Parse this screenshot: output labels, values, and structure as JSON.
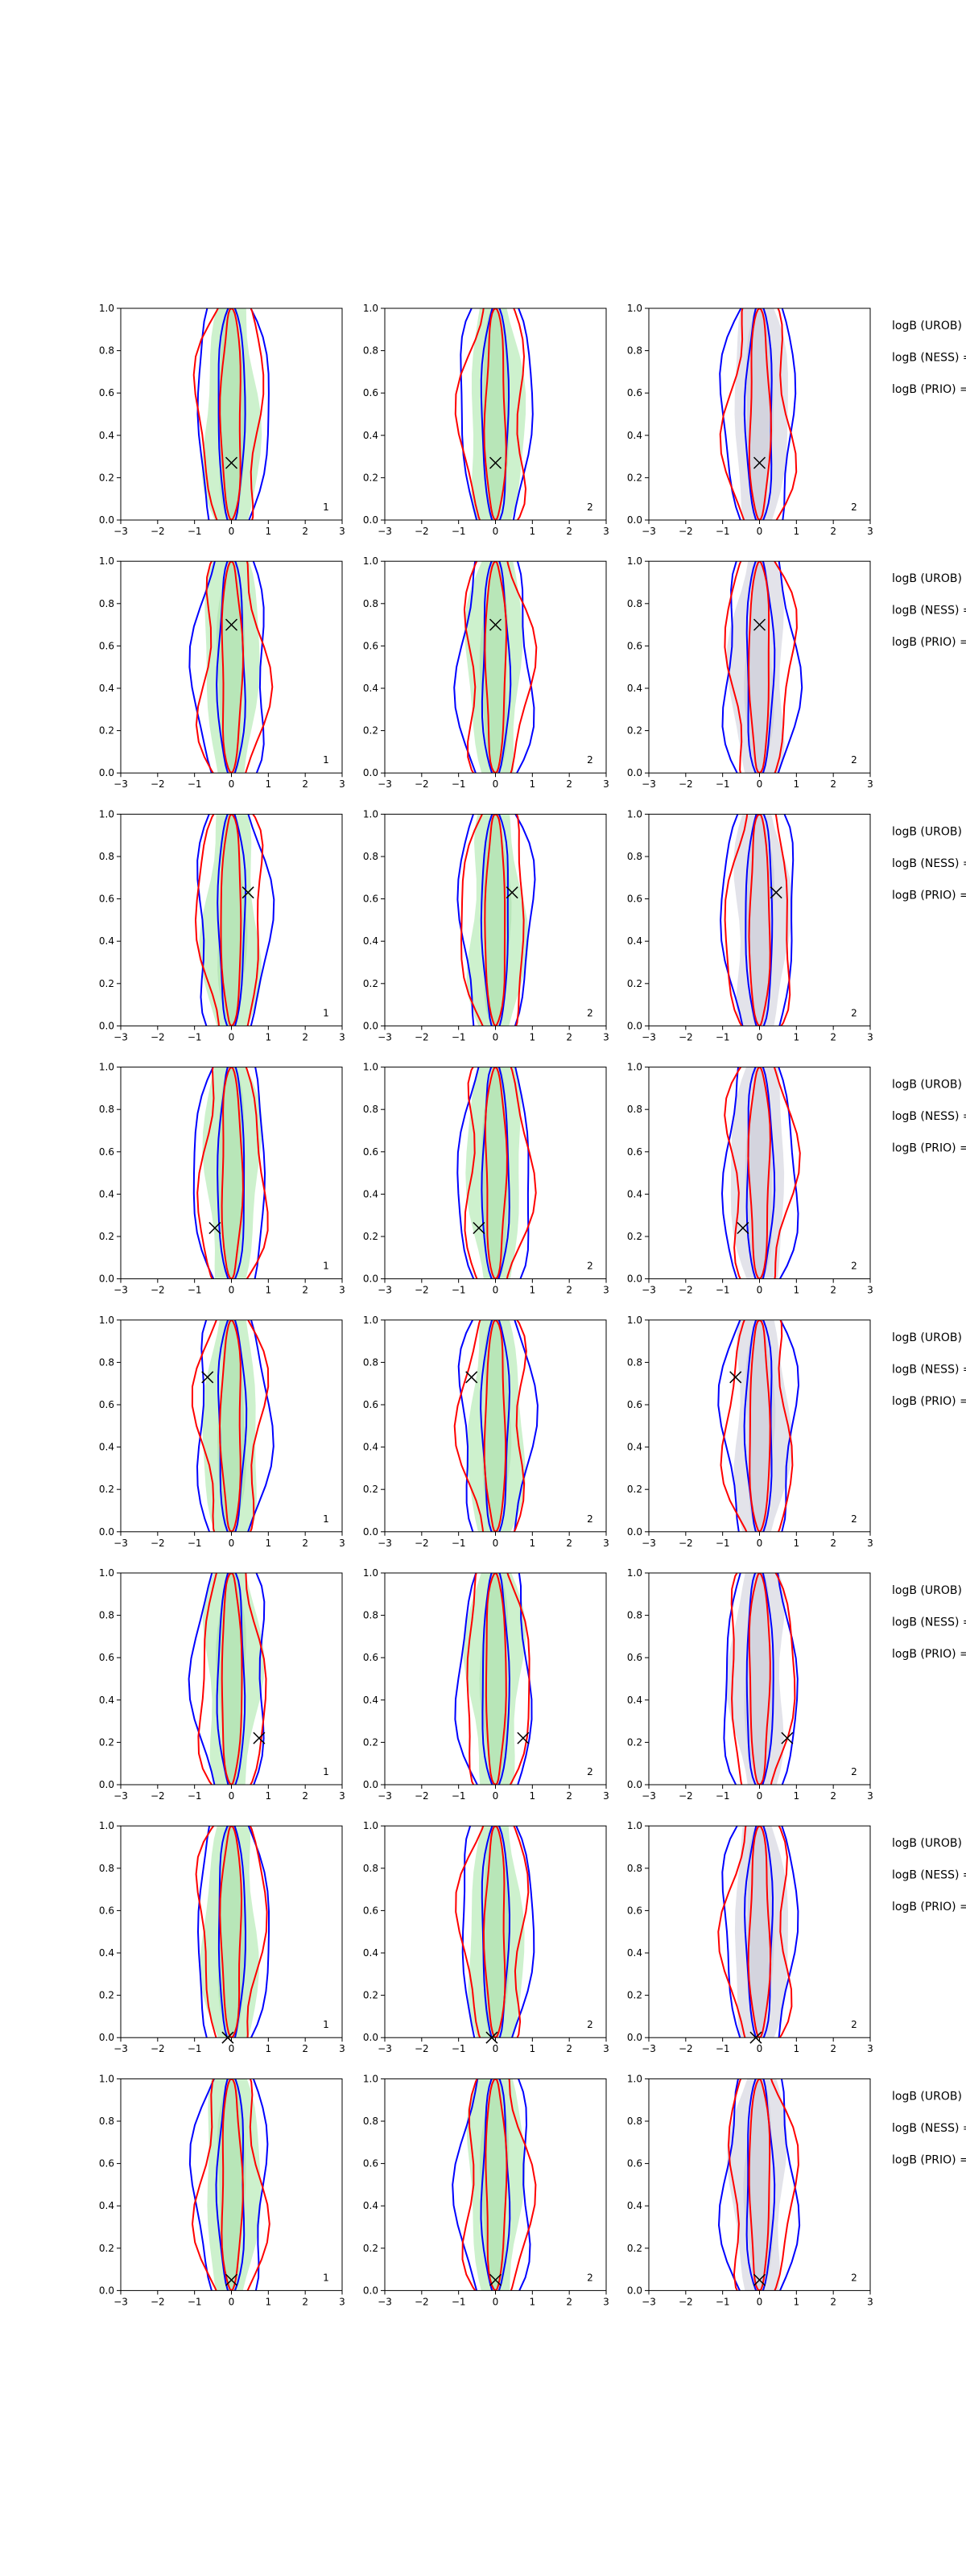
{
  "figure": {
    "rows": 8,
    "cols": 3,
    "panel_type": "contour",
    "colors": {
      "blue": "#0000ff",
      "red": "#ff0000",
      "green_fill": "#c8f0c8",
      "gray_fill": "#e0e0e8",
      "marker": "#000000"
    }
  },
  "side_labels": [
    "logB (UROB) =",
    "logB (NESS) =",
    "logB (PRIO) ="
  ],
  "panel_numbers": [
    "1",
    "2",
    "2"
  ],
  "chart_data": {
    "type": "contour",
    "xlim": [
      -3,
      3
    ],
    "ylim": [
      0,
      1
    ],
    "xticks": [
      -3,
      -2,
      -1,
      0,
      1,
      2,
      3
    ],
    "yticks": [
      0.0,
      0.2,
      0.4,
      0.6,
      0.8,
      1.0
    ],
    "xtick_labels": [
      "−3",
      "−2",
      "−1",
      "0",
      "1",
      "2",
      "3"
    ],
    "ytick_labels": [
      "0.0",
      "0.2",
      "0.4",
      "0.6",
      "0.8",
      "1.0"
    ],
    "markers": [
      {
        "x": 0.0,
        "y": 0.27
      },
      {
        "x": 0.0,
        "y": 0.7
      },
      {
        "x": 0.45,
        "y": 0.63
      },
      {
        "x": -0.45,
        "y": 0.24
      },
      {
        "x": -0.65,
        "y": 0.73
      },
      {
        "x": 0.75,
        "y": 0.22
      },
      {
        "x": -0.1,
        "y": 0.0
      },
      {
        "x": 0.0,
        "y": 0.05
      }
    ]
  }
}
